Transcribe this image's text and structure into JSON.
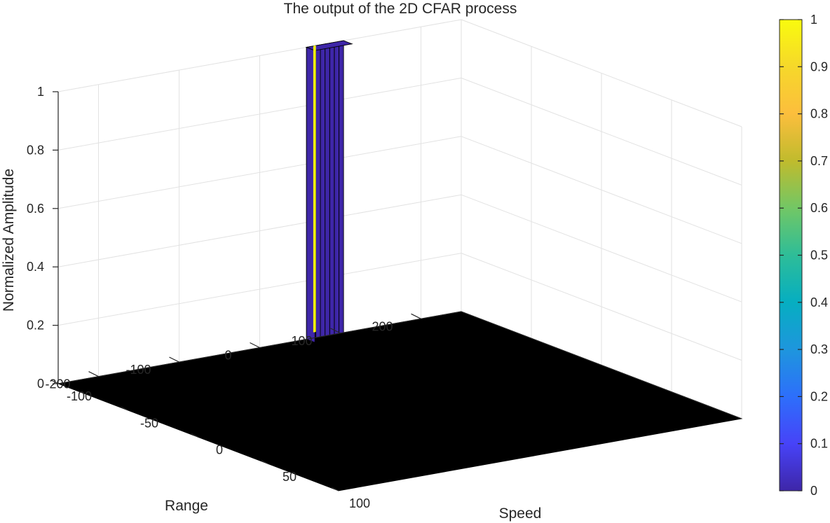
{
  "chart_data": {
    "type": "surface",
    "title": "The output of the 2D CFAR process",
    "xlabel": "Speed",
    "ylabel": "Range",
    "zlabel": "Normalized Amplitude",
    "xlim": [
      -100,
      100
    ],
    "ylim": [
      -250,
      250
    ],
    "zlim": [
      0,
      1
    ],
    "x_ticks": [
      -100,
      -50,
      0,
      50,
      100
    ],
    "y_ticks": [
      -200,
      -100,
      0,
      100,
      200
    ],
    "z_ticks": [
      0,
      0.2,
      0.4,
      0.6,
      0.8,
      1
    ],
    "x_tick_labels": [
      "-100",
      "-50",
      "0",
      "50",
      "100"
    ],
    "y_tick_labels": [
      "-200",
      "-100",
      "0",
      "100",
      "200"
    ],
    "z_tick_labels": [
      "0",
      "0.2",
      "0.4",
      "0.6",
      "0.8",
      "1"
    ],
    "grid": true,
    "floor_value": 0,
    "floor_color": "#000000",
    "peak": {
      "speed_range": [
        -100,
        -94
      ],
      "range_range": [
        58,
        104
      ],
      "value": 1,
      "strip_count": 8,
      "highlight_strip": 6,
      "face_color": "#3e26a8",
      "highlight_color": "#f9fb0e"
    },
    "colorbar": {
      "range": [
        0,
        1
      ],
      "ticks": [
        0,
        0.1,
        0.2,
        0.3,
        0.4,
        0.5,
        0.6,
        0.7,
        0.8,
        0.9,
        1
      ],
      "tick_labels": [
        "0",
        "0.1",
        "0.2",
        "0.3",
        "0.4",
        "0.5",
        "0.6",
        "0.7",
        "0.8",
        "0.9",
        "1"
      ],
      "colormap": "parula",
      "stops": [
        "#3e26a8",
        "#4743f8",
        "#2d6ffb",
        "#1e96dd",
        "#06aec1",
        "#2ebd98",
        "#72c765",
        "#c0bb2d",
        "#fcbe3d",
        "#f6d82a",
        "#f9fb0e"
      ]
    }
  }
}
